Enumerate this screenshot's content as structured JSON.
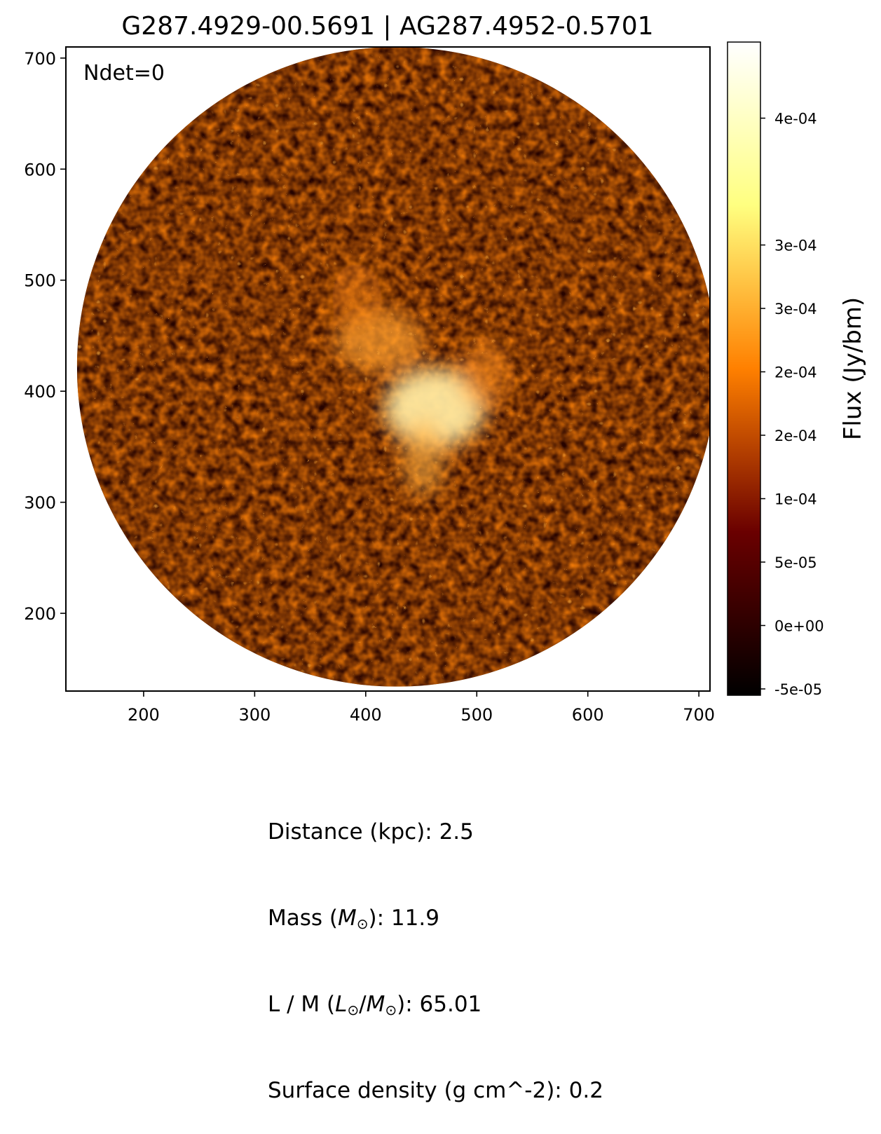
{
  "chart_data": {
    "type": "heatmap",
    "title": "G287.4929-00.5691 | AG287.4952-0.5701",
    "annotation": "Ndet=0",
    "xlim": [
      130,
      710
    ],
    "ylim": [
      130,
      710
    ],
    "x_ticks": [
      "200",
      "300",
      "400",
      "500",
      "600",
      "700"
    ],
    "y_ticks": [
      "200",
      "300",
      "400",
      "500",
      "600",
      "700"
    ],
    "image": {
      "footprint": "circle",
      "center": [
        428,
        422
      ],
      "radius": 288,
      "emission_peak": [
        462,
        385
      ],
      "colormap": "afmhot"
    },
    "colorbar": {
      "label": "Flux (Jy/bm)",
      "range": [
        -5.5e-05,
        0.00046
      ],
      "ticks": [
        {
          "value": -5e-05,
          "label": "-5e-05"
        },
        {
          "value": 0.0,
          "label": "0e+00"
        },
        {
          "value": 5e-05,
          "label": "5e-05"
        },
        {
          "value": 0.0001,
          "label": "1e-04"
        },
        {
          "value": 0.00015,
          "label": "2e-04"
        },
        {
          "value": 0.0002,
          "label": "2e-04"
        },
        {
          "value": 0.00025,
          "label": "3e-04"
        },
        {
          "value": 0.0003,
          "label": "3e-04"
        },
        {
          "value": 0.0004,
          "label": "4e-04"
        }
      ]
    }
  },
  "info": {
    "distance": "Distance (kpc): 2.5",
    "mass_pre": "Mass (",
    "mass_sym": "M",
    "mass_post": "): 11.9",
    "lm_pre": "L / M (",
    "lm_sym1": "L",
    "lm_mid": "/",
    "lm_sym2": "M",
    "lm_post": "): 65.01",
    "surface_density": "Surface density (g cm^-2): 0.2",
    "sun_symbol": "⊙"
  }
}
